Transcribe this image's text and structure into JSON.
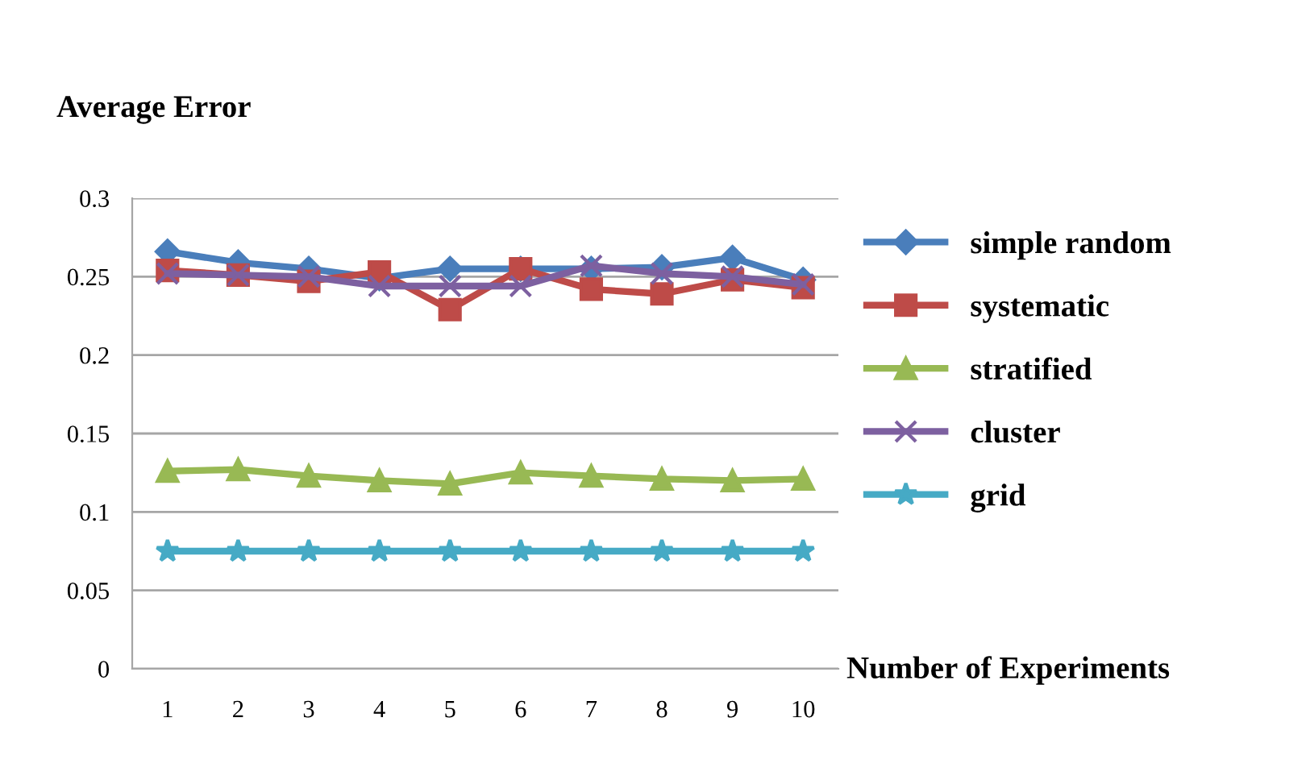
{
  "chart_data": {
    "type": "line",
    "ylabel": "Average Error",
    "xlabel": "Number of Experiments",
    "categories": [
      "1",
      "2",
      "3",
      "4",
      "5",
      "6",
      "7",
      "8",
      "9",
      "10"
    ],
    "ylim": [
      0,
      0.3
    ],
    "yticks": [
      {
        "value": 0,
        "label": "0"
      },
      0.05,
      {
        "value": 0.1,
        "label": "0.1"
      },
      0.15,
      {
        "value": 0.2,
        "label": "0.2"
      },
      0.25,
      {
        "value": 0.3,
        "label": "0.3"
      }
    ],
    "grid": "y",
    "legend": "right",
    "series": [
      {
        "name": "simple random",
        "color": "#4a7ebb",
        "marker": "diamond",
        "values": [
          0.266,
          0.259,
          0.255,
          0.249,
          0.255,
          0.255,
          0.255,
          0.256,
          0.262,
          0.248
        ]
      },
      {
        "name": "systematic",
        "color": "#be4b48",
        "marker": "square",
        "values": [
          0.254,
          0.251,
          0.247,
          0.253,
          0.229,
          0.255,
          0.242,
          0.239,
          0.248,
          0.243
        ]
      },
      {
        "name": "stratified",
        "color": "#98b954",
        "marker": "triangle",
        "values": [
          0.126,
          0.127,
          0.123,
          0.12,
          0.118,
          0.125,
          0.123,
          0.121,
          0.12,
          0.121
        ]
      },
      {
        "name": "cluster",
        "color": "#7d60a0",
        "marker": "cross",
        "values": [
          0.252,
          0.251,
          0.25,
          0.244,
          0.244,
          0.244,
          0.257,
          0.252,
          0.25,
          0.245
        ]
      },
      {
        "name": "grid",
        "color": "#46aac5",
        "marker": "star",
        "values": [
          0.075,
          0.075,
          0.075,
          0.075,
          0.075,
          0.075,
          0.075,
          0.075,
          0.075,
          0.075
        ]
      }
    ]
  }
}
